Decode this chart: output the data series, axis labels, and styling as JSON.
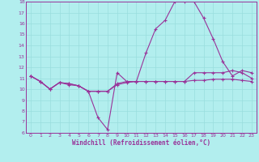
{
  "xlabel": "Windchill (Refroidissement éolien,°C)",
  "x": [
    0,
    1,
    2,
    3,
    4,
    5,
    6,
    7,
    8,
    9,
    10,
    11,
    12,
    13,
    14,
    15,
    16,
    17,
    18,
    19,
    20,
    21,
    22,
    23
  ],
  "line1": [
    11.2,
    10.7,
    10.0,
    10.6,
    10.5,
    10.3,
    9.8,
    7.4,
    6.3,
    11.5,
    10.7,
    10.7,
    13.3,
    15.5,
    16.3,
    18.0,
    18.0,
    18.0,
    16.5,
    14.6,
    12.5,
    11.2,
    11.7,
    11.5
  ],
  "line2": [
    11.2,
    10.7,
    10.0,
    10.6,
    10.5,
    10.3,
    9.8,
    9.8,
    9.8,
    10.5,
    10.7,
    10.7,
    10.7,
    10.7,
    10.7,
    10.7,
    10.7,
    11.5,
    11.5,
    11.5,
    11.5,
    11.7,
    11.5,
    11.0
  ],
  "line3": [
    11.2,
    10.7,
    10.0,
    10.6,
    10.4,
    10.3,
    9.8,
    9.8,
    9.8,
    10.4,
    10.6,
    10.7,
    10.7,
    10.7,
    10.7,
    10.7,
    10.7,
    10.8,
    10.8,
    10.9,
    10.9,
    10.9,
    10.8,
    10.7
  ],
  "line_color": "#993399",
  "bg_color": "#b2eeee",
  "grid_color": "#99dddd",
  "ylim_min": 6,
  "ylim_max": 18,
  "yticks": [
    6,
    7,
    8,
    9,
    10,
    11,
    12,
    13,
    14,
    15,
    16,
    17,
    18
  ],
  "xticks": [
    0,
    1,
    2,
    3,
    4,
    5,
    6,
    7,
    8,
    9,
    10,
    11,
    12,
    13,
    14,
    15,
    16,
    17,
    18,
    19,
    20,
    21,
    22,
    23
  ],
  "tick_fontsize": 4.5,
  "label_fontsize": 5.5,
  "lw": 0.8,
  "ms": 2.5,
  "mew": 0.8
}
